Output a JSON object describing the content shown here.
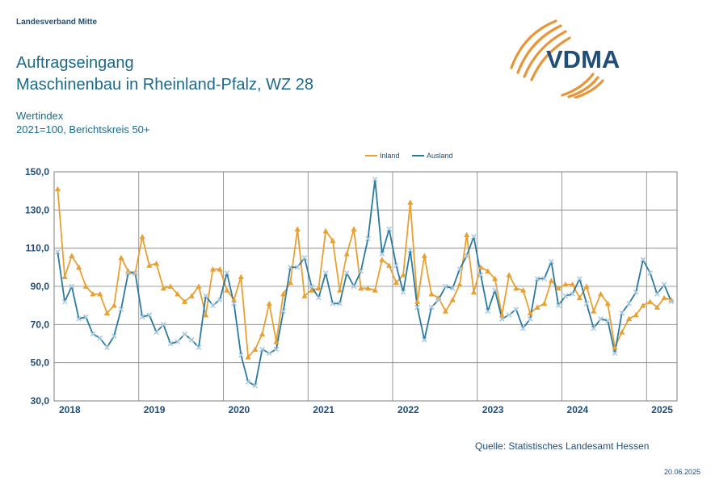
{
  "header": {
    "org": "Landesverband Mitte",
    "title_line1": "Auftragseingang",
    "title_line2": "Maschinenbau in Rheinland-Pfalz, WZ 28",
    "subtitle_line1": "Wertindex",
    "subtitle_line2": "2021=100, Berichtskreis 50+"
  },
  "logo": {
    "text": "VDMA",
    "color": "#1f4e79",
    "arc_color": "#e8953a"
  },
  "footer": {
    "source": "Quelle: Statistisches Landesamt Hessen",
    "date": "20.06.2025"
  },
  "colors": {
    "inland": "#e8a032",
    "ausland": "#2a7aa0",
    "ausland_marker": "#a8c8e0",
    "grid": "#7f7f7f"
  },
  "chart_data": {
    "type": "line",
    "title": "",
    "xlabel": "",
    "ylabel": "",
    "ylim": [
      30,
      150
    ],
    "yticks": [
      "150,0",
      "130,0",
      "110,0",
      "90,0",
      "70,0",
      "50,0",
      "30,0"
    ],
    "ytick_values": [
      150,
      130,
      110,
      90,
      70,
      50,
      30
    ],
    "x_labels": [
      "2018",
      "2019",
      "2020",
      "2021",
      "2022",
      "2023",
      "2024",
      "2025"
    ],
    "x_start": "2018-01",
    "x_end": "2025-04",
    "legend_position": "top-center",
    "series": [
      {
        "name": "Inland",
        "marker": "triangle",
        "values": [
          141,
          95,
          106,
          100,
          90,
          86,
          86,
          76,
          80,
          105,
          98,
          97,
          116,
          101,
          102,
          89,
          90,
          86,
          82,
          85,
          90,
          75,
          99,
          99,
          88,
          83,
          95,
          53,
          57,
          65,
          81,
          61,
          86,
          92,
          120,
          85,
          88,
          89,
          119,
          114,
          88,
          107,
          120,
          89,
          89,
          88,
          104,
          101,
          92,
          96,
          134,
          82,
          106,
          86,
          84,
          77,
          83,
          91,
          117,
          87,
          100,
          98,
          94,
          75,
          96,
          89,
          88,
          76,
          79,
          81,
          93,
          89,
          91,
          91,
          84,
          90,
          77,
          86,
          81,
          58,
          66,
          73,
          75,
          80,
          82,
          79,
          84,
          83
        ]
      },
      {
        "name": "Ausland",
        "marker": "x",
        "values": [
          108,
          82,
          90,
          73,
          74,
          65,
          63,
          58,
          64,
          78,
          97,
          97,
          74,
          75,
          66,
          70,
          60,
          61,
          65,
          62,
          58,
          85,
          80,
          83,
          97,
          81,
          54,
          40,
          38,
          57,
          55,
          57,
          77,
          100,
          100,
          105,
          90,
          84,
          97,
          81,
          81,
          97,
          90,
          98,
          115,
          146,
          107,
          120,
          101,
          87,
          109,
          79,
          62,
          79,
          83,
          90,
          89,
          99,
          106,
          116,
          96,
          77,
          88,
          73,
          75,
          78,
          68,
          73,
          94,
          94,
          103,
          80,
          85,
          86,
          94,
          81,
          68,
          73,
          72,
          55,
          76,
          81,
          87,
          104,
          97,
          86,
          91,
          82
        ]
      }
    ]
  }
}
